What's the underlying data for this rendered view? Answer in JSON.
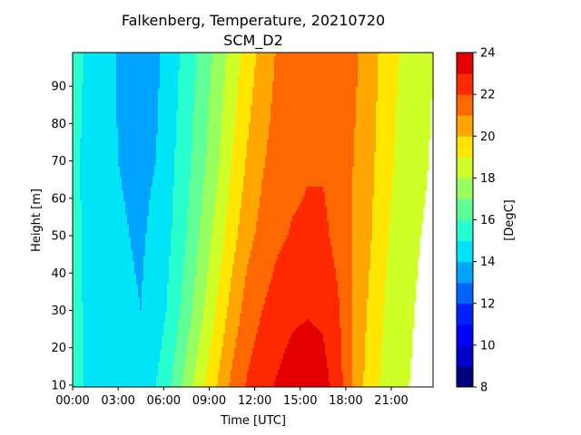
{
  "chart_data": {
    "type": "heatmap",
    "title_line1": "Falkenberg, Temperature, 20210720",
    "title_line2": "SCM_D2",
    "xlabel": "Time [UTC]",
    "ylabel": "Height [m]",
    "colorbar_label": "[DegC]",
    "x_ticks": [
      {
        "value": 0,
        "label": "00:00"
      },
      {
        "value": 3,
        "label": "03:00"
      },
      {
        "value": 6,
        "label": "06:00"
      },
      {
        "value": 9,
        "label": "09:00"
      },
      {
        "value": 12,
        "label": "12:00"
      },
      {
        "value": 15,
        "label": "15:00"
      },
      {
        "value": 18,
        "label": "18:00"
      },
      {
        "value": 21,
        "label": "21:00"
      }
    ],
    "y_ticks": [
      {
        "value": 10,
        "label": "10"
      },
      {
        "value": 20,
        "label": "20"
      },
      {
        "value": 30,
        "label": "30"
      },
      {
        "value": 40,
        "label": "40"
      },
      {
        "value": 50,
        "label": "50"
      },
      {
        "value": 60,
        "label": "60"
      },
      {
        "value": 70,
        "label": "70"
      },
      {
        "value": 80,
        "label": "80"
      },
      {
        "value": 90,
        "label": "90"
      }
    ],
    "xlim": [
      0,
      23.75
    ],
    "ylim": [
      9.5,
      99
    ],
    "colorbar_levels": [
      8,
      9,
      10,
      11,
      12,
      13,
      14,
      15,
      16,
      17,
      18,
      19,
      20,
      21,
      22,
      23,
      24
    ],
    "colorbar_ticks": [
      {
        "value": 8,
        "label": "8"
      },
      {
        "value": 10,
        "label": "10"
      },
      {
        "value": 12,
        "label": "12"
      },
      {
        "value": 14,
        "label": "14"
      },
      {
        "value": 16,
        "label": "16"
      },
      {
        "value": 18,
        "label": "18"
      },
      {
        "value": 20,
        "label": "20"
      },
      {
        "value": 22,
        "label": "22"
      },
      {
        "value": 24,
        "label": "24"
      }
    ],
    "colorbar_colors": [
      "#00007f",
      "#0000c8",
      "#0000ff",
      "#0020ff",
      "#0064ff",
      "#00a4ff",
      "#00e4f8",
      "#29ffce",
      "#60ff97",
      "#97ff60",
      "#ceff29",
      "#ffe600",
      "#ffa700",
      "#ff6800",
      "#ff2900",
      "#e40000",
      "#a40000"
    ],
    "x_times": [
      0,
      1.5,
      3,
      4.5,
      5.5,
      6.5,
      7.5,
      8.5,
      9.5,
      10.5,
      11.5,
      12.5,
      13.5,
      14.5,
      15.5,
      16.5,
      17.5,
      18.5,
      19.5,
      20.5,
      21.5,
      22.5,
      23.75
    ],
    "heights": [
      10,
      30,
      50,
      70,
      99
    ],
    "temperature": [
      [
        15.5,
        14.5,
        14.3,
        14.2,
        15.0,
        16.0,
        17.4,
        18.8,
        20.0,
        21.2,
        22.1,
        22.7,
        23.1,
        23.5,
        23.7,
        23.4,
        22.5,
        20.8,
        19.6,
        18.8,
        18.2,
        17.9,
        17.5
      ],
      [
        15.4,
        14.5,
        14.2,
        14.0,
        14.4,
        15.3,
        16.5,
        17.8,
        19.1,
        20.4,
        21.4,
        22.0,
        22.5,
        22.8,
        22.9,
        22.8,
        22.1,
        20.9,
        19.9,
        19.0,
        18.4,
        18.0,
        17.7
      ],
      [
        15.3,
        14.5,
        14.1,
        13.9,
        14.2,
        15.0,
        16.0,
        17.2,
        18.4,
        19.6,
        20.7,
        21.3,
        21.8,
        22.1,
        22.2,
        22.2,
        21.7,
        20.9,
        20.2,
        19.2,
        18.6,
        18.1,
        17.8
      ],
      [
        15.2,
        14.6,
        14.0,
        13.8,
        14.0,
        14.8,
        15.7,
        16.7,
        17.8,
        19.0,
        20.1,
        20.9,
        21.4,
        21.7,
        21.9,
        21.9,
        21.6,
        21.0,
        20.4,
        19.4,
        18.8,
        18.3,
        17.9
      ],
      [
        15.2,
        14.8,
        13.9,
        13.6,
        13.8,
        14.5,
        15.4,
        16.3,
        17.3,
        18.4,
        19.4,
        20.4,
        21.1,
        21.5,
        21.7,
        21.8,
        21.6,
        21.2,
        20.6,
        19.7,
        19.0,
        18.5,
        18.0
      ]
    ]
  }
}
